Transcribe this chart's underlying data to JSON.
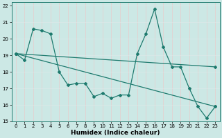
{
  "xlabel": "Humidex (Indice chaleur)",
  "background_color": "#cce8e5",
  "line_color": "#1e7a6e",
  "grid_color_h": "#dde8e8",
  "grid_color_v": "#e8cccc",
  "xlim": [
    -0.5,
    23.5
  ],
  "ylim": [
    15,
    22.2
  ],
  "xticks": [
    0,
    1,
    2,
    3,
    4,
    5,
    6,
    7,
    8,
    9,
    10,
    11,
    12,
    13,
    14,
    15,
    16,
    17,
    18,
    19,
    20,
    21,
    22,
    23
  ],
  "yticks": [
    15,
    16,
    17,
    18,
    19,
    20,
    21,
    22
  ],
  "series1_x": [
    0,
    1,
    2,
    3,
    4,
    5,
    6,
    7,
    8,
    9,
    10,
    11,
    12,
    13,
    14,
    15,
    16,
    17,
    18,
    19,
    20,
    21,
    22,
    23
  ],
  "series1_y": [
    19.1,
    18.7,
    20.6,
    20.5,
    20.3,
    18.0,
    17.2,
    17.3,
    17.3,
    16.5,
    16.7,
    16.4,
    16.6,
    16.6,
    19.1,
    20.3,
    21.8,
    19.5,
    18.3,
    18.3,
    17.0,
    15.9,
    15.2,
    15.9
  ],
  "series2_x": [
    0,
    23
  ],
  "series2_y": [
    19.1,
    18.3
  ],
  "series3_x": [
    0,
    23
  ],
  "series3_y": [
    19.1,
    15.9
  ],
  "xlabel_fontsize": 6.5,
  "tick_fontsize": 5.0,
  "marker": "D",
  "markersize": 2.0,
  "linewidth": 0.9
}
